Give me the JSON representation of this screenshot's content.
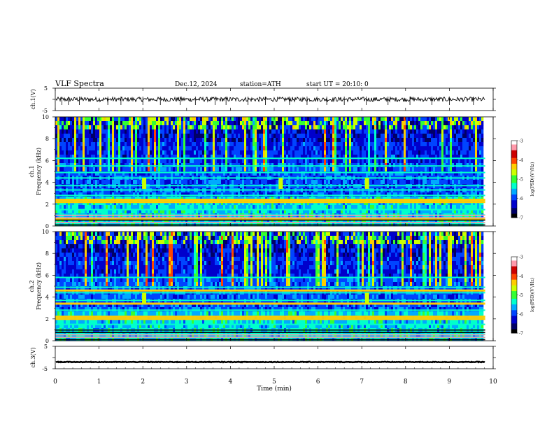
{
  "header": {
    "title": "VLF  Spectra",
    "date": "Dec.12, 2024",
    "station": "station=ATH",
    "start": "start  UT  =   20:10: 0"
  },
  "colors": {
    "colormap": [
      "#000000",
      "#000066",
      "#0000cc",
      "#0044ff",
      "#00aaff",
      "#00ffcc",
      "#33ff33",
      "#ccff00",
      "#ffcc00",
      "#ff4400",
      "#cc0000",
      "#ff99aa",
      "#ffffff"
    ],
    "waveform": "#000000",
    "axes": "#000000"
  },
  "chart_data": [
    {
      "type": "line",
      "name": "ch1-waveform",
      "ylabel": "ch.1(V)",
      "ylim": [
        -5,
        5
      ],
      "yticks": [
        "5",
        "-5"
      ],
      "xlim": [
        0,
        10
      ],
      "mean": 0,
      "amplitude": 1.0,
      "spikes": [
        0.15,
        0.3,
        0.55,
        1.2,
        1.5,
        2.0,
        2.4,
        2.85,
        3.2,
        3.65,
        3.9,
        4.4,
        4.8,
        5.35,
        5.75,
        6.2,
        6.6,
        7.1,
        7.6,
        8.1,
        8.6,
        9.0,
        9.55
      ]
    },
    {
      "type": "heatmap",
      "name": "ch1-spectrogram",
      "ylabel": "ch.1\nFrequency (kHz)",
      "ylabel_lines": [
        "ch.1",
        "Frequency (kHz)"
      ],
      "ylim": [
        0,
        10
      ],
      "yticks": [
        "0",
        "2",
        "4",
        "6",
        "8",
        "10"
      ],
      "xlim": [
        0,
        9.82
      ],
      "colorbar": {
        "label": "log(PSD)(V²/Hz)",
        "range": [
          -7,
          -3
        ],
        "ticks": [
          "-3",
          "-4",
          "-5",
          "-6",
          "-7"
        ]
      },
      "bands_khz": [
        0.3,
        0.6,
        1.0,
        1.5,
        2.2,
        2.8,
        3.3,
        3.7,
        4.4,
        4.9,
        5.5,
        6.2
      ],
      "bright_bands_khz": [
        2.2,
        2.4,
        0.6
      ],
      "events_min": [
        2.03,
        5.15,
        7.12
      ]
    },
    {
      "type": "heatmap",
      "name": "ch2-spectrogram",
      "ylabel": "ch.2\nFrequency (kHz)",
      "ylabel_lines": [
        "ch.2",
        "Frequency (kHz)"
      ],
      "ylim": [
        0,
        10
      ],
      "yticks": [
        "0",
        "2",
        "4",
        "6",
        "8",
        "10"
      ],
      "xlim": [
        0,
        9.82
      ],
      "colorbar": {
        "label": "log(PSD)(V²/Hz)",
        "range": [
          -7,
          -3
        ],
        "ticks": [
          "-3",
          "-4",
          "-5",
          "-6",
          "-7"
        ]
      },
      "bands_khz": [
        0.3,
        0.6,
        1.0,
        1.5,
        2.0,
        2.2,
        2.8,
        3.4,
        3.7,
        4.4,
        4.9,
        5.8
      ],
      "bright_bands_khz": [
        2.0,
        2.2,
        3.4,
        4.6
      ],
      "events_min": [
        2.03,
        7.12
      ]
    },
    {
      "type": "line",
      "name": "ch3-waveform",
      "ylabel": "ch.3(V)",
      "ylim": [
        -5,
        5
      ],
      "yticks": [
        "5",
        "-5"
      ],
      "xlim": [
        0,
        10
      ],
      "mean": -2,
      "amplitude": 0.15
    }
  ],
  "xaxis": {
    "label": "Time  (min)",
    "ticks": [
      "0",
      "1",
      "2",
      "3",
      "4",
      "5",
      "6",
      "7",
      "8",
      "9",
      "10"
    ],
    "range": [
      0,
      10
    ]
  }
}
